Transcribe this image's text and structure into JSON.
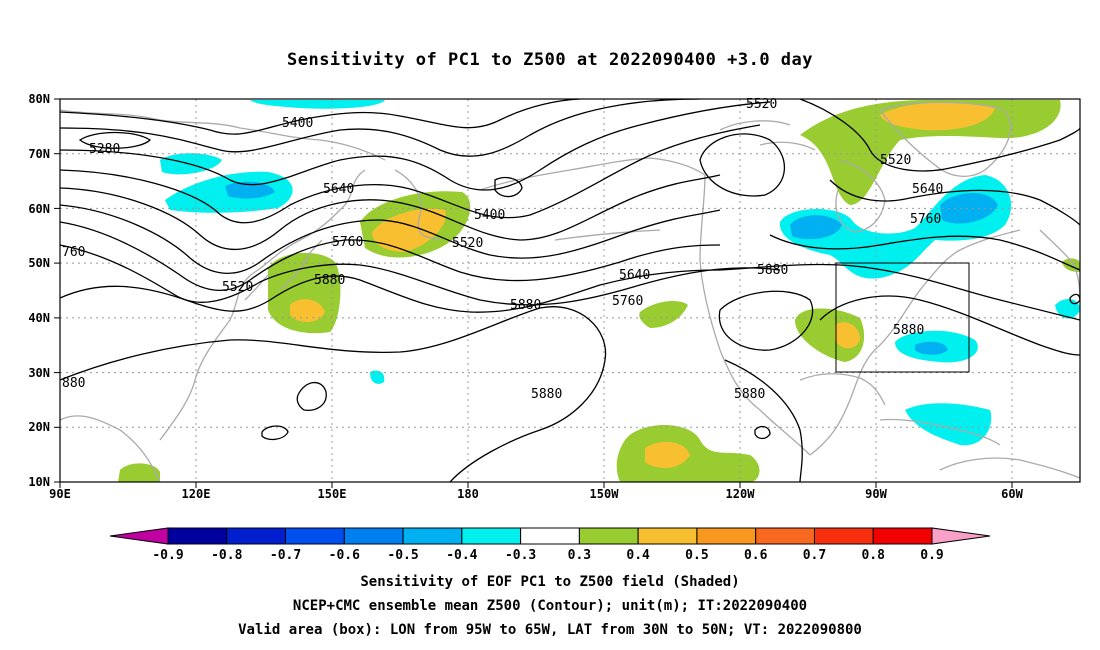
{
  "title": "Sensitivity of PC1 to Z500 at 2022090400 +3.0 day",
  "map": {
    "lat_labels": [
      "80N",
      "70N",
      "60N",
      "50N",
      "40N",
      "30N",
      "20N",
      "10N"
    ],
    "lon_labels": [
      "90E",
      "120E",
      "150E",
      "180",
      "150W",
      "120W",
      "90W",
      "60W"
    ],
    "contour_labels": [
      "5280",
      "5400",
      "5520",
      "5640",
      "5760",
      "5880",
      "5400",
      "5520",
      "5640",
      "5760",
      "5880",
      "5520",
      "5640",
      "5760",
      "5880",
      "5880",
      "5880",
      "5520",
      "5640",
      "5760",
      "5880",
      "760",
      "880"
    ],
    "valid_box": {
      "lon_range": [
        "95W",
        "65W"
      ],
      "lat_range": [
        "30N",
        "50N"
      ]
    },
    "colors": {
      "coastline": "#aaaaaa",
      "contour": "#000000",
      "grid": "#999999"
    }
  },
  "colorbar": {
    "labels": [
      "-0.9",
      "-0.8",
      "-0.7",
      "-0.6",
      "-0.5",
      "-0.4",
      "-0.3",
      "0.3",
      "0.4",
      "0.5",
      "0.6",
      "0.7",
      "0.8",
      "0.9"
    ],
    "colors": [
      "#0000a0",
      "#0020d0",
      "#0050f0",
      "#0080f0",
      "#00b0f0",
      "#00f0f0",
      "#ffffff",
      "#98cc30",
      "#f8c030",
      "#f89820",
      "#f86820",
      "#f83010",
      "#f00000"
    ],
    "left_arrow_color": "#c000a0",
    "right_arrow_color": "#f8a0c8"
  },
  "captions": [
    "Sensitivity of EOF PC1 to Z500 field (Shaded)",
    "NCEP+CMC ensemble mean Z500 (Contour); unit(m); IT:2022090400",
    "Valid area (box): LON from 95W to 65W, LAT from 30N to 50N; VT: 2022090800"
  ]
}
